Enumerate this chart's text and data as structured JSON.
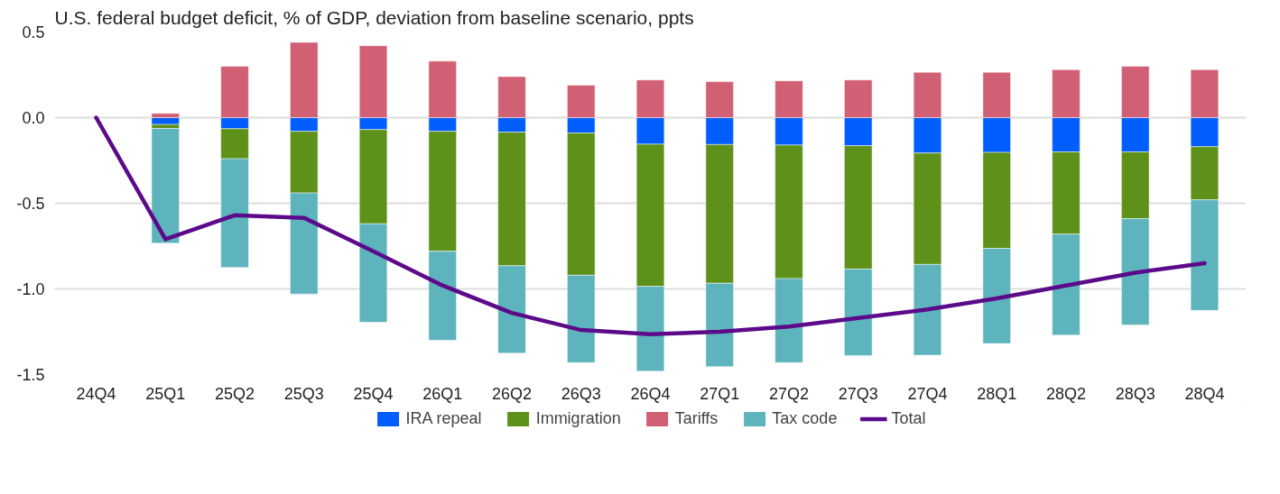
{
  "chart_data": {
    "type": "bar",
    "stacked": true,
    "title": "U.S. federal budget deficit, % of GDP, deviation from baseline scenario, ppts",
    "categories": [
      "24Q4",
      "25Q1",
      "25Q2",
      "25Q3",
      "25Q4",
      "26Q1",
      "26Q2",
      "26Q3",
      "26Q4",
      "27Q1",
      "27Q2",
      "27Q3",
      "27Q4",
      "28Q1",
      "28Q2",
      "28Q3",
      "28Q4"
    ],
    "ylim": [
      -1.5,
      0.5
    ],
    "yticks": [
      {
        "value": 0.5,
        "label": "0.5"
      },
      {
        "value": 0,
        "label": "0.0"
      },
      {
        "value": -0.5,
        "label": "-0.5"
      },
      {
        "value": -1,
        "label": "-1.0"
      },
      {
        "value": -1.5,
        "label": "-1.5"
      }
    ],
    "grid": "y",
    "legend": "bottom",
    "series": [
      {
        "name": "IRA repeal",
        "color": "#005eff",
        "values": [
          null,
          -0.04,
          -0.065,
          -0.08,
          -0.07,
          -0.08,
          -0.085,
          -0.09,
          -0.155,
          -0.157,
          -0.16,
          -0.164,
          -0.207,
          -0.203,
          -0.2,
          -0.2,
          -0.17
        ]
      },
      {
        "name": "Immigration",
        "color": "#5e9119",
        "values": [
          null,
          -0.023,
          -0.175,
          -0.36,
          -0.55,
          -0.7,
          -0.78,
          -0.83,
          -0.83,
          -0.81,
          -0.78,
          -0.72,
          -0.65,
          -0.56,
          -0.48,
          -0.39,
          -0.31
        ]
      },
      {
        "name": "Tariffs",
        "color": "#d26074",
        "values": [
          null,
          0.025,
          0.3,
          0.44,
          0.42,
          0.33,
          0.24,
          0.19,
          0.22,
          0.21,
          0.215,
          0.22,
          0.265,
          0.265,
          0.28,
          0.3,
          0.28
        ]
      },
      {
        "name": "Tax code",
        "color": "#5eb4bc",
        "values": [
          null,
          -0.67,
          -0.635,
          -0.59,
          -0.575,
          -0.52,
          -0.51,
          -0.51,
          -0.495,
          -0.487,
          -0.49,
          -0.505,
          -0.53,
          -0.556,
          -0.59,
          -0.62,
          -0.645
        ]
      },
      {
        "name": "Total",
        "type": "line",
        "color": "#5c0a8a",
        "values": [
          0,
          -0.71,
          -0.57,
          -0.585,
          -0.78,
          -0.98,
          -1.14,
          -1.24,
          -1.265,
          -1.25,
          -1.22,
          -1.17,
          -1.12,
          -1.055,
          -0.98,
          -0.905,
          -0.85
        ]
      }
    ]
  }
}
